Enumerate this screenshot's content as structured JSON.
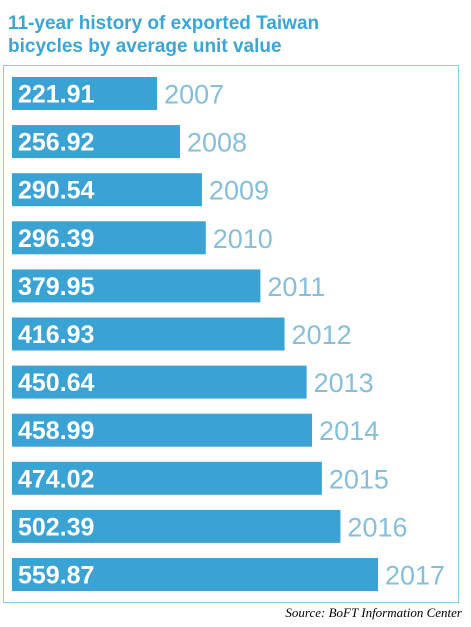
{
  "chart_data": {
    "type": "bar",
    "orientation": "horizontal",
    "title": "11-year history of exported Taiwan\nbicycles by average unit value",
    "categories": [
      "2007",
      "2008",
      "2009",
      "2010",
      "2011",
      "2012",
      "2013",
      "2014",
      "2015",
      "2016",
      "2017"
    ],
    "values": [
      221.91,
      256.92,
      290.54,
      296.39,
      379.95,
      416.93,
      450.64,
      458.99,
      474.02,
      502.39,
      559.87
    ],
    "value_labels": [
      "221.91",
      "256.92",
      "290.54",
      "296.39",
      "379.95",
      "416.93",
      "450.64",
      "458.99",
      "474.02",
      "502.39",
      "559.87"
    ],
    "xlim": [
      0,
      559.87
    ],
    "grid": false,
    "legend": "none",
    "source": "Source: BoFT Information Center",
    "colors": {
      "bar": "#3ba3d4",
      "year_label": "#86bfdc",
      "title": "#3aa6d6",
      "frame": "#8ccbe6"
    }
  }
}
